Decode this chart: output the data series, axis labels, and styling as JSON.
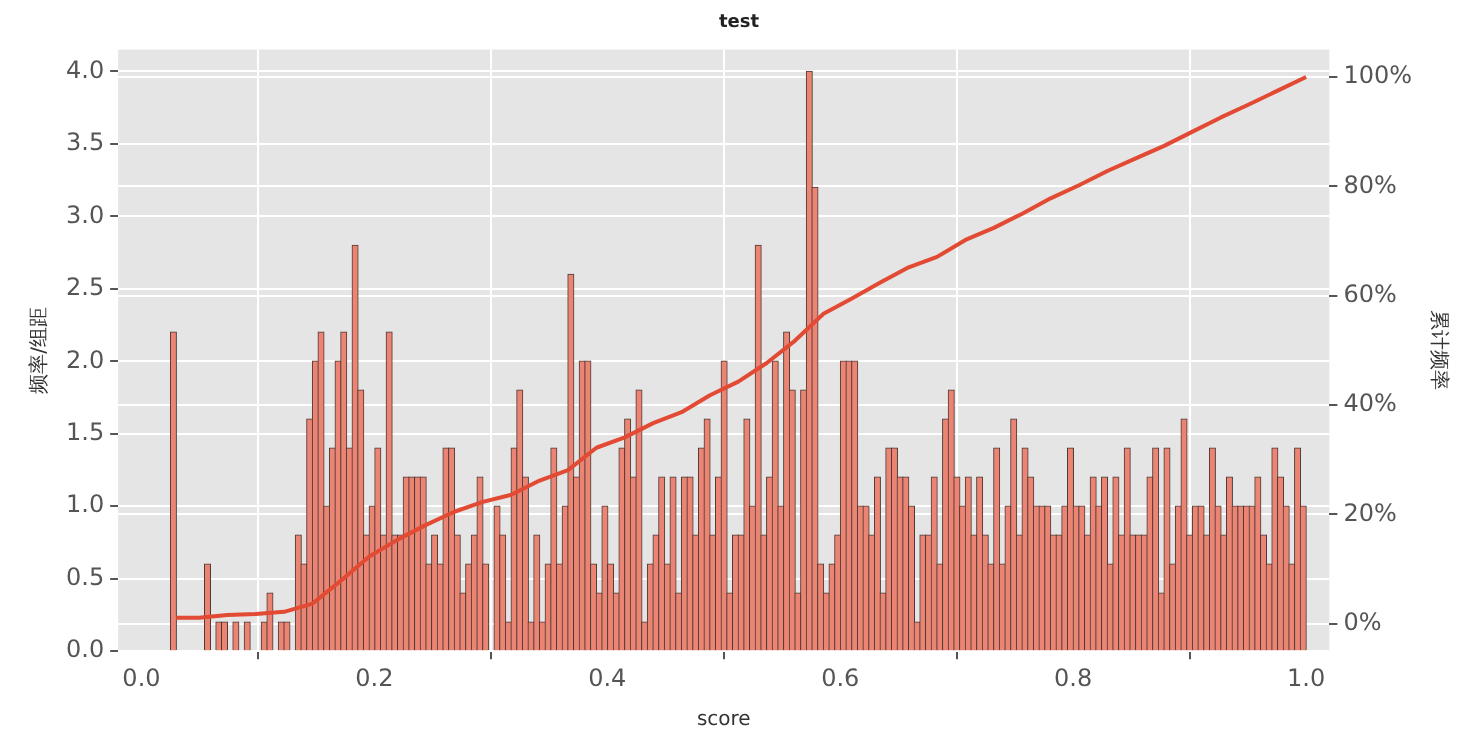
{
  "chart_data": {
    "type": "histogram",
    "title": "test",
    "xlabel": "score",
    "ylabel": "频率/组距",
    "y2label": "累计频率",
    "bins": [
      0.025,
      0.029875,
      0.03475,
      0.039625,
      0.0445,
      0.049375,
      0.05425,
      0.059125,
      0.064,
      0.068875,
      0.07375,
      0.078625,
      0.0835,
      0.088375,
      0.09325,
      0.098125,
      0.103,
      0.107875,
      0.11275,
      0.117625,
      0.1225,
      0.127375,
      0.13225,
      0.137125,
      0.142,
      0.146875,
      0.15175,
      0.156625,
      0.1615,
      0.166375,
      0.17125,
      0.176125,
      0.181,
      0.185875,
      0.19075,
      0.195625,
      0.2005,
      0.205375,
      0.21025,
      0.215125,
      0.22,
      0.224875,
      0.22975,
      0.234625,
      0.2395,
      0.244375,
      0.24925,
      0.254125,
      0.259,
      0.263875,
      0.26875,
      0.273625,
      0.2785,
      0.283375,
      0.28825,
      0.293125,
      0.298,
      0.302875,
      0.30775,
      0.312625,
      0.3175,
      0.322375,
      0.32725,
      0.332125,
      0.337,
      0.341875,
      0.34675,
      0.351625,
      0.3565,
      0.361375,
      0.36625,
      0.371125,
      0.376,
      0.380875,
      0.38575,
      0.390625,
      0.3955,
      0.400375,
      0.40525,
      0.410125,
      0.415,
      0.419875,
      0.42475,
      0.429625,
      0.4345,
      0.439375,
      0.44425,
      0.449125,
      0.454,
      0.458875,
      0.46375,
      0.468625,
      0.4735,
      0.478375,
      0.48325,
      0.488125,
      0.493,
      0.497875,
      0.50275,
      0.507625,
      0.5125,
      0.517375,
      0.52225,
      0.527125,
      0.532,
      0.536875,
      0.54175,
      0.546625,
      0.5515,
      0.556375,
      0.56125,
      0.566125,
      0.571,
      0.575875,
      0.58075,
      0.585625,
      0.5905,
      0.595375,
      0.60025,
      0.605125,
      0.61,
      0.614875,
      0.61975,
      0.624625,
      0.6295,
      0.634375,
      0.63925,
      0.644125,
      0.649,
      0.653875,
      0.65875,
      0.663625,
      0.6685,
      0.673375,
      0.67825,
      0.683125,
      0.688,
      0.692875,
      0.69775,
      0.702625,
      0.7075,
      0.712375,
      0.71725,
      0.722125,
      0.727,
      0.731875,
      0.73675,
      0.741625,
      0.7465,
      0.751375,
      0.75625,
      0.761125,
      0.766,
      0.770875,
      0.77575,
      0.780625,
      0.7855,
      0.790375,
      0.79525,
      0.800125,
      0.805,
      0.809875,
      0.81475,
      0.819625,
      0.8245,
      0.829375,
      0.83425,
      0.839125,
      0.844,
      0.848875,
      0.85375,
      0.858625,
      0.8635,
      0.868375,
      0.87325,
      0.878125,
      0.883,
      0.887875,
      0.89275,
      0.897625,
      0.9025,
      0.907375,
      0.91225,
      0.917125,
      0.922,
      0.926875,
      0.93175,
      0.936625,
      0.9415,
      0.946375,
      0.95125,
      0.956125,
      0.961,
      0.965875,
      0.97075,
      0.975625,
      0.9805,
      0.985375,
      0.99025,
      0.995125,
      1.0
    ],
    "series": [
      {
        "color": "#ec8474",
        "values": [
          2.2,
          0,
          0,
          0,
          0,
          0,
          0.6,
          0,
          0.2,
          0.2,
          0,
          0.2,
          0,
          0.2,
          0,
          0,
          0.2,
          0.4,
          0,
          0.2,
          0.2,
          0,
          0.8,
          0.6,
          1.6,
          2.0,
          2.2,
          1.0,
          1.4,
          2.0,
          2.2,
          1.4,
          2.8,
          1.8,
          0.8,
          1.0,
          1.4,
          0.8,
          2.2,
          0.8,
          0.8,
          1.2,
          1.2,
          1.2,
          1.2,
          0.6,
          0.8,
          0.6,
          1.4,
          1.4,
          0.8,
          0.4,
          0.6,
          0.8,
          1.2,
          0.6,
          0,
          1.0,
          0.8,
          0.2,
          1.4,
          1.8,
          1.2,
          0.2,
          0.8,
          0.2,
          0.6,
          1.4,
          0.6,
          1.0,
          2.6,
          1.2,
          2.0,
          2.0,
          0.6,
          0.4,
          1.0,
          0.6,
          0.4,
          1.4,
          1.6,
          1.2,
          1.8,
          0.2,
          0.6,
          0.8,
          1.2,
          0.6,
          1.2,
          0.4,
          1.2,
          1.2,
          0.8,
          1.4,
          1.6,
          0.8,
          1.2,
          2.0,
          0.4,
          0.8,
          0.8,
          1.6,
          1.0,
          2.8,
          0.8,
          1.2,
          2.0,
          1.0,
          2.2,
          1.8,
          0.4,
          1.8,
          4.0,
          3.2,
          0.6,
          0.4,
          0.6,
          0.8,
          2.0,
          2.0,
          2.0,
          1.0,
          1.0,
          0.8,
          1.2,
          0.4,
          1.4,
          1.4,
          1.2,
          1.2,
          1.0,
          0.2,
          0.8,
          0.8,
          1.2,
          0.6,
          1.6,
          1.8,
          1.2,
          1.0,
          1.2,
          0.8,
          1.2,
          0.8,
          0.6,
          1.4,
          0.6,
          1.0,
          1.6,
          0.8,
          1.4,
          1.2,
          1.0,
          1.0,
          1.0,
          0.8,
          0.8,
          1.0,
          1.4,
          1.0,
          1.0,
          0.8,
          1.2,
          1.0,
          1.2,
          0.6,
          1.2,
          0.8,
          1.4,
          0.8,
          0.8,
          0.8,
          1.2,
          1.4,
          0.4,
          1.4,
          0.6,
          1.0,
          1.6,
          0.8,
          1.0,
          1.0,
          0.8,
          1.4,
          1.0,
          0.8,
          1.2,
          1.0,
          1.0,
          1.0,
          1.0,
          1.2,
          0.8,
          0.6,
          1.4,
          1.2,
          1.0,
          0.6,
          1.4,
          1.0
        ]
      },
      {
        "type": "line",
        "axis": "y2",
        "color": "#e24a33",
        "x": [
          0.029875,
          0.049375,
          0.07375,
          0.098125,
          0.1225,
          0.146875,
          0.17125,
          0.195625,
          0.22,
          0.244375,
          0.26875,
          0.293125,
          0.3175,
          0.341875,
          0.36625,
          0.390625,
          0.415,
          0.439375,
          0.46375,
          0.488125,
          0.5125,
          0.536875,
          0.56125,
          0.585625,
          0.61,
          0.634375,
          0.65875,
          0.683125,
          0.7075,
          0.731875,
          0.75625,
          0.780625,
          0.805,
          0.829375,
          0.85375,
          0.878125,
          0.9025,
          0.926875,
          0.95125,
          0.975625,
          1.0
        ],
        "values": [
          1.1,
          1.1,
          1.6,
          1.8,
          2.2,
          3.7,
          7.9,
          12.3,
          15.4,
          18.1,
          20.5,
          22.3,
          23.6,
          26.2,
          28.1,
          32.2,
          34.1,
          36.7,
          38.7,
          41.8,
          44.3,
          47.7,
          51.8,
          56.7,
          59.5,
          62.4,
          65.2,
          67.1,
          70.2,
          72.4,
          75.0,
          77.8,
          80.2,
          82.8,
          85.1,
          87.4,
          90.0,
          92.6,
          95.0,
          97.5,
          100
        ]
      }
    ],
    "xlim": [
      -0.02,
      1.02
    ],
    "xticks": [
      {
        "value": 0,
        "label": "0.0"
      },
      0.2,
      0.4,
      0.6,
      0.8,
      {
        "value": 1,
        "label": "1.0"
      }
    ],
    "ylim": [
      0,
      4.15
    ],
    "yticks": [
      {
        "value": 0,
        "label": "0.0"
      },
      0.5,
      {
        "value": 1,
        "label": "1.0"
      },
      1.5,
      {
        "value": 2,
        "label": "2.0"
      },
      2.5,
      {
        "value": 3,
        "label": "3.0"
      },
      3.5,
      {
        "value": 4,
        "label": "4.0"
      }
    ],
    "y2lim": [
      -5,
      105
    ],
    "y2ticks": [
      {
        "value": 0,
        "label": "0%"
      },
      {
        "value": 20,
        "label": "20%"
      },
      {
        "value": 40,
        "label": "40%"
      },
      {
        "value": 60,
        "label": "60%"
      },
      {
        "value": 80,
        "label": "80%"
      },
      {
        "value": 100,
        "label": "100%"
      }
    ],
    "grid": true,
    "legend": false
  }
}
